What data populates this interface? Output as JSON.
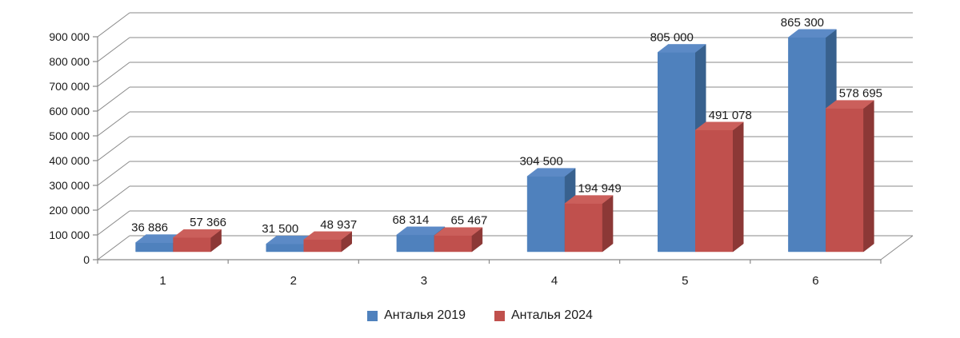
{
  "chart_data": {
    "type": "bar",
    "variant": "3d-clustered-column",
    "title": "",
    "xlabel": "",
    "ylabel": "",
    "categories": [
      "1",
      "2",
      "3",
      "4",
      "5",
      "6"
    ],
    "series": [
      {
        "name": "Анталья 2019",
        "values": [
          36886,
          31500,
          68314,
          304500,
          805000,
          865300
        ],
        "labels": [
          "36 886",
          "31 500",
          "68 314",
          "304 500",
          "805 000",
          "865 300"
        ],
        "colors": {
          "front": "#4F81BD",
          "side": "#38618E",
          "top": "#5C8AC6"
        }
      },
      {
        "name": "Анталья 2024",
        "values": [
          57366,
          48937,
          65467,
          194949,
          491078,
          578695
        ],
        "labels": [
          "57 366",
          "48 937",
          "65 467",
          "194 949",
          "491 078",
          "578 695"
        ],
        "colors": {
          "front": "#C0504D",
          "side": "#8C3836",
          "top": "#CB5F5B"
        }
      }
    ],
    "ylim": [
      0,
      900000
    ],
    "ytick_step": 100000,
    "ytick_labels": [
      "0",
      "100 000",
      "200 000",
      "300 000",
      "400 000",
      "500 000",
      "600 000",
      "700 000",
      "800 000",
      "900 000"
    ],
    "grid": true,
    "legend_position": "bottom"
  },
  "colors": {
    "background": "#ffffff",
    "gridline": "#898989",
    "axis": "#898989",
    "text": "#1a1a1a"
  }
}
